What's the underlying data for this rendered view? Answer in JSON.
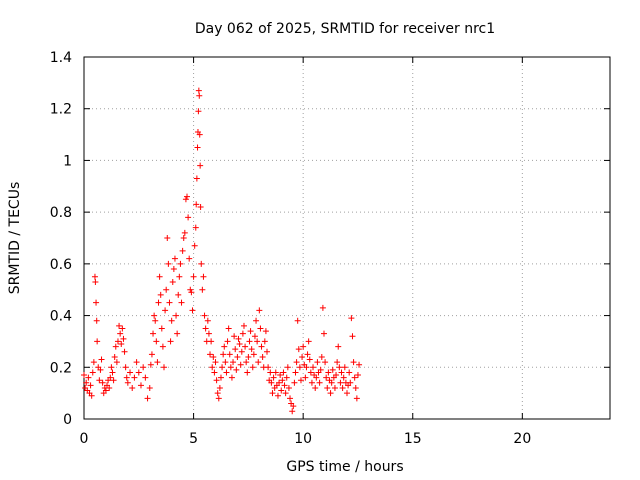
{
  "chart_data": {
    "type": "scatter",
    "title": "Day 062 of 2025, SRMTID for receiver nrc1",
    "xlabel": "GPS time / hours",
    "ylabel": "SRMTID / TECUs",
    "xlim": [
      0,
      24
    ],
    "ylim": [
      0,
      1.4
    ],
    "xticks": [
      0,
      5,
      10,
      15,
      20
    ],
    "xtick_labels": [
      "0",
      "5",
      "10",
      "15",
      "20"
    ],
    "yticks": [
      0,
      0.2,
      0.4,
      0.6,
      0.8,
      1.0,
      1.2,
      1.4
    ],
    "ytick_labels": [
      "0",
      "0.2",
      "0.4",
      "0.6",
      "0.8",
      "1",
      "1.2",
      "1.4"
    ],
    "grid": true,
    "marker": "+",
    "color": "#ff0000",
    "series": [
      {
        "name": "SRMTID",
        "points": [
          [
            0.0,
            0.17
          ],
          [
            0.05,
            0.12
          ],
          [
            0.1,
            0.14
          ],
          [
            0.15,
            0.11
          ],
          [
            0.2,
            0.16
          ],
          [
            0.25,
            0.1
          ],
          [
            0.3,
            0.13
          ],
          [
            0.35,
            0.09
          ],
          [
            0.4,
            0.18
          ],
          [
            0.45,
            0.22
          ],
          [
            0.5,
            0.55
          ],
          [
            0.52,
            0.53
          ],
          [
            0.55,
            0.45
          ],
          [
            0.58,
            0.38
          ],
          [
            0.6,
            0.3
          ],
          [
            0.65,
            0.2
          ],
          [
            0.7,
            0.15
          ],
          [
            0.75,
            0.19
          ],
          [
            0.8,
            0.23
          ],
          [
            0.85,
            0.14
          ],
          [
            0.9,
            0.1
          ],
          [
            0.95,
            0.12
          ],
          [
            1.0,
            0.11
          ],
          [
            1.05,
            0.13
          ],
          [
            1.1,
            0.15
          ],
          [
            1.15,
            0.12
          ],
          [
            1.2,
            0.16
          ],
          [
            1.25,
            0.2
          ],
          [
            1.3,
            0.18
          ],
          [
            1.35,
            0.15
          ],
          [
            1.4,
            0.24
          ],
          [
            1.45,
            0.28
          ],
          [
            1.5,
            0.22
          ],
          [
            1.55,
            0.3
          ],
          [
            1.6,
            0.36
          ],
          [
            1.65,
            0.33
          ],
          [
            1.7,
            0.29
          ],
          [
            1.75,
            0.35
          ],
          [
            1.8,
            0.31
          ],
          [
            1.85,
            0.26
          ],
          [
            1.9,
            0.2
          ],
          [
            1.95,
            0.16
          ],
          [
            2.0,
            0.14
          ],
          [
            2.1,
            0.18
          ],
          [
            2.2,
            0.12
          ],
          [
            2.3,
            0.16
          ],
          [
            2.4,
            0.22
          ],
          [
            2.5,
            0.18
          ],
          [
            2.6,
            0.13
          ],
          [
            2.7,
            0.2
          ],
          [
            2.8,
            0.16
          ],
          [
            2.9,
            0.08
          ],
          [
            3.0,
            0.12
          ],
          [
            3.05,
            0.21
          ],
          [
            3.1,
            0.25
          ],
          [
            3.15,
            0.33
          ],
          [
            3.2,
            0.4
          ],
          [
            3.25,
            0.38
          ],
          [
            3.3,
            0.3
          ],
          [
            3.35,
            0.22
          ],
          [
            3.4,
            0.45
          ],
          [
            3.45,
            0.55
          ],
          [
            3.5,
            0.48
          ],
          [
            3.55,
            0.35
          ],
          [
            3.6,
            0.28
          ],
          [
            3.65,
            0.2
          ],
          [
            3.7,
            0.42
          ],
          [
            3.75,
            0.5
          ],
          [
            3.8,
            0.7
          ],
          [
            3.85,
            0.6
          ],
          [
            3.9,
            0.45
          ],
          [
            3.95,
            0.3
          ],
          [
            4.0,
            0.38
          ],
          [
            4.05,
            0.53
          ],
          [
            4.1,
            0.58
          ],
          [
            4.15,
            0.62
          ],
          [
            4.2,
            0.4
          ],
          [
            4.25,
            0.33
          ],
          [
            4.3,
            0.48
          ],
          [
            4.35,
            0.55
          ],
          [
            4.4,
            0.6
          ],
          [
            4.45,
            0.45
          ],
          [
            4.5,
            0.65
          ],
          [
            4.55,
            0.7
          ],
          [
            4.6,
            0.72
          ],
          [
            4.65,
            0.85
          ],
          [
            4.7,
            0.86
          ],
          [
            4.75,
            0.78
          ],
          [
            4.8,
            0.62
          ],
          [
            4.85,
            0.5
          ],
          [
            4.9,
            0.49
          ],
          [
            4.95,
            0.42
          ],
          [
            5.0,
            0.55
          ],
          [
            5.05,
            0.67
          ],
          [
            5.1,
            0.74
          ],
          [
            5.12,
            0.83
          ],
          [
            5.15,
            0.93
          ],
          [
            5.18,
            1.05
          ],
          [
            5.2,
            1.11
          ],
          [
            5.22,
            1.19
          ],
          [
            5.24,
            1.27
          ],
          [
            5.26,
            1.25
          ],
          [
            5.28,
            1.1
          ],
          [
            5.3,
            0.98
          ],
          [
            5.32,
            0.82
          ],
          [
            5.35,
            0.6
          ],
          [
            5.4,
            0.5
          ],
          [
            5.45,
            0.55
          ],
          [
            5.5,
            0.4
          ],
          [
            5.55,
            0.35
          ],
          [
            5.6,
            0.3
          ],
          [
            5.65,
            0.38
          ],
          [
            5.7,
            0.33
          ],
          [
            5.75,
            0.25
          ],
          [
            5.8,
            0.3
          ],
          [
            5.85,
            0.2
          ],
          [
            5.9,
            0.24
          ],
          [
            5.95,
            0.18
          ],
          [
            6.0,
            0.22
          ],
          [
            6.05,
            0.15
          ],
          [
            6.1,
            0.1
          ],
          [
            6.15,
            0.08
          ],
          [
            6.2,
            0.12
          ],
          [
            6.25,
            0.16
          ],
          [
            6.3,
            0.2
          ],
          [
            6.35,
            0.25
          ],
          [
            6.4,
            0.28
          ],
          [
            6.45,
            0.22
          ],
          [
            6.5,
            0.18
          ],
          [
            6.55,
            0.3
          ],
          [
            6.6,
            0.35
          ],
          [
            6.65,
            0.25
          ],
          [
            6.7,
            0.2
          ],
          [
            6.75,
            0.16
          ],
          [
            6.8,
            0.22
          ],
          [
            6.85,
            0.32
          ],
          [
            6.9,
            0.27
          ],
          [
            6.95,
            0.19
          ],
          [
            7.0,
            0.24
          ],
          [
            7.05,
            0.31
          ],
          [
            7.1,
            0.29
          ],
          [
            7.15,
            0.21
          ],
          [
            7.2,
            0.26
          ],
          [
            7.25,
            0.33
          ],
          [
            7.3,
            0.36
          ],
          [
            7.35,
            0.28
          ],
          [
            7.4,
            0.22
          ],
          [
            7.45,
            0.18
          ],
          [
            7.5,
            0.24
          ],
          [
            7.55,
            0.3
          ],
          [
            7.6,
            0.34
          ],
          [
            7.65,
            0.27
          ],
          [
            7.7,
            0.2
          ],
          [
            7.75,
            0.25
          ],
          [
            7.8,
            0.32
          ],
          [
            7.85,
            0.38
          ],
          [
            7.9,
            0.3
          ],
          [
            7.95,
            0.22
          ],
          [
            8.0,
            0.42
          ],
          [
            8.05,
            0.35
          ],
          [
            8.1,
            0.28
          ],
          [
            8.15,
            0.24
          ],
          [
            8.2,
            0.2
          ],
          [
            8.25,
            0.3
          ],
          [
            8.3,
            0.34
          ],
          [
            8.35,
            0.26
          ],
          [
            8.4,
            0.2
          ],
          [
            8.45,
            0.15
          ],
          [
            8.5,
            0.18
          ],
          [
            8.55,
            0.14
          ],
          [
            8.6,
            0.1
          ],
          [
            8.65,
            0.16
          ],
          [
            8.7,
            0.12
          ],
          [
            8.75,
            0.18
          ],
          [
            8.8,
            0.13
          ],
          [
            8.85,
            0.09
          ],
          [
            8.9,
            0.14
          ],
          [
            8.95,
            0.17
          ],
          [
            9.0,
            0.11
          ],
          [
            9.05,
            0.15
          ],
          [
            9.1,
            0.18
          ],
          [
            9.15,
            0.13
          ],
          [
            9.2,
            0.1
          ],
          [
            9.25,
            0.16
          ],
          [
            9.3,
            0.2
          ],
          [
            9.35,
            0.12
          ],
          [
            9.4,
            0.08
          ],
          [
            9.45,
            0.06
          ],
          [
            9.5,
            0.03
          ],
          [
            9.55,
            0.05
          ],
          [
            9.6,
            0.14
          ],
          [
            9.65,
            0.18
          ],
          [
            9.7,
            0.22
          ],
          [
            9.75,
            0.38
          ],
          [
            9.8,
            0.27
          ],
          [
            9.85,
            0.2
          ],
          [
            9.9,
            0.15
          ],
          [
            9.95,
            0.24
          ],
          [
            10.0,
            0.28
          ],
          [
            10.05,
            0.21
          ],
          [
            10.1,
            0.16
          ],
          [
            10.15,
            0.2
          ],
          [
            10.2,
            0.25
          ],
          [
            10.25,
            0.3
          ],
          [
            10.3,
            0.23
          ],
          [
            10.35,
            0.18
          ],
          [
            10.4,
            0.14
          ],
          [
            10.45,
            0.2
          ],
          [
            10.5,
            0.17
          ],
          [
            10.55,
            0.12
          ],
          [
            10.6,
            0.16
          ],
          [
            10.65,
            0.22
          ],
          [
            10.7,
            0.18
          ],
          [
            10.75,
            0.14
          ],
          [
            10.8,
            0.19
          ],
          [
            10.85,
            0.24
          ],
          [
            10.9,
            0.43
          ],
          [
            10.95,
            0.33
          ],
          [
            11.0,
            0.22
          ],
          [
            11.05,
            0.16
          ],
          [
            11.1,
            0.12
          ],
          [
            11.15,
            0.18
          ],
          [
            11.2,
            0.15
          ],
          [
            11.25,
            0.1
          ],
          [
            11.3,
            0.14
          ],
          [
            11.35,
            0.19
          ],
          [
            11.4,
            0.16
          ],
          [
            11.45,
            0.12
          ],
          [
            11.5,
            0.17
          ],
          [
            11.55,
            0.22
          ],
          [
            11.6,
            0.28
          ],
          [
            11.65,
            0.2
          ],
          [
            11.7,
            0.14
          ],
          [
            11.75,
            0.18
          ],
          [
            11.8,
            0.12
          ],
          [
            11.85,
            0.16
          ],
          [
            11.9,
            0.2
          ],
          [
            11.95,
            0.14
          ],
          [
            12.0,
            0.1
          ],
          [
            12.05,
            0.13
          ],
          [
            12.1,
            0.18
          ],
          [
            12.15,
            0.14
          ],
          [
            12.2,
            0.39
          ],
          [
            12.25,
            0.32
          ],
          [
            12.3,
            0.22
          ],
          [
            12.35,
            0.16
          ],
          [
            12.4,
            0.12
          ],
          [
            12.45,
            0.08
          ],
          [
            12.5,
            0.17
          ],
          [
            12.55,
            0.21
          ]
        ]
      }
    ]
  }
}
